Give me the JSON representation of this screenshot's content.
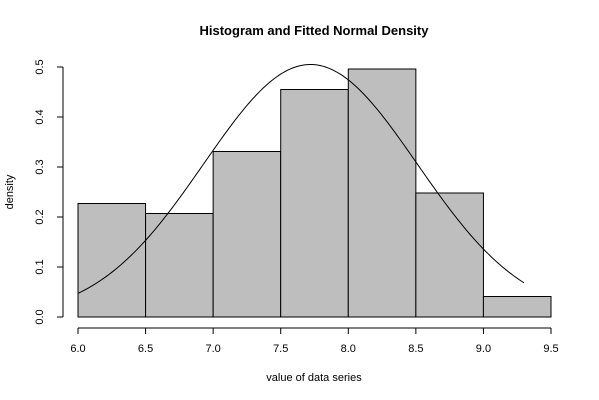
{
  "chart_data": {
    "type": "bar",
    "title": "Histogram and Fitted Normal Density",
    "xlabel": "value of data series",
    "ylabel": "density",
    "xlim": [
      6.0,
      9.5
    ],
    "ylim": [
      0.0,
      0.5
    ],
    "x_ticks": [
      "6.0",
      "6.5",
      "7.0",
      "7.5",
      "8.0",
      "8.5",
      "9.0",
      "9.5"
    ],
    "y_ticks": [
      "0.0",
      "0.1",
      "0.2",
      "0.3",
      "0.4",
      "0.5"
    ],
    "grid": false,
    "bins": [
      {
        "start": 6.0,
        "end": 6.5,
        "density": 0.227
      },
      {
        "start": 6.5,
        "end": 7.0,
        "density": 0.207
      },
      {
        "start": 7.0,
        "end": 7.5,
        "density": 0.331
      },
      {
        "start": 7.5,
        "end": 8.0,
        "density": 0.455
      },
      {
        "start": 8.0,
        "end": 8.5,
        "density": 0.496
      },
      {
        "start": 8.5,
        "end": 9.0,
        "density": 0.248
      },
      {
        "start": 9.0,
        "end": 9.5,
        "density": 0.041
      }
    ],
    "normal_fit": {
      "mean": 7.72,
      "sd": 0.79,
      "x_range": [
        6.0,
        9.3
      ]
    },
    "colors": {
      "bar_fill": "#bebebe",
      "bar_stroke": "#000000",
      "curve": "#000000",
      "axis": "#000000"
    }
  }
}
